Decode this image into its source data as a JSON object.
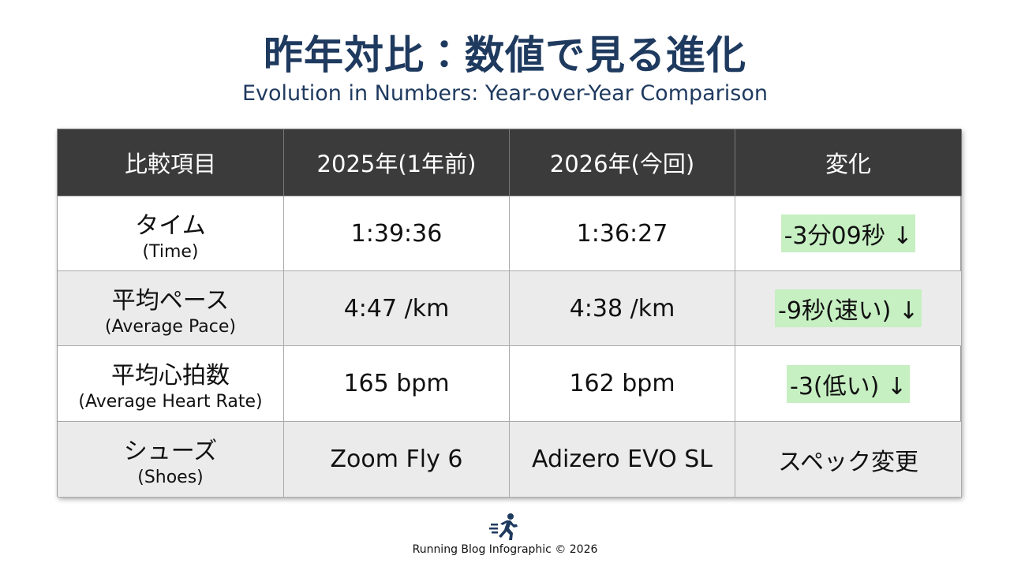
{
  "header": {
    "title": "昨年対比：数値で見る進化",
    "subtitle": "Evolution in Numbers: Year-over-Year Comparison"
  },
  "table": {
    "columns": [
      "比較項目",
      "2025年(1年前)",
      "2026年(今回)",
      "変化"
    ],
    "rows": [
      {
        "label": "タイム",
        "sublabel": "(Time)",
        "values": [
          "1:39:36",
          "1:36:27"
        ],
        "change": "-3分09秒 ↓",
        "highlight": true
      },
      {
        "label": "平均ペース",
        "sublabel": "(Average Pace)",
        "values": [
          "4:47 /km",
          "4:38 /km"
        ],
        "change": "-9秒(速い) ↓",
        "highlight": true
      },
      {
        "label": "平均心拍数",
        "sublabel": "(Average Heart Rate)",
        "values": [
          "165 bpm",
          "162 bpm"
        ],
        "change": "-3(低い) ↓",
        "highlight": true
      },
      {
        "label": "シューズ",
        "sublabel": "(Shoes)",
        "values": [
          "Zoom Fly 6",
          "Adizero EVO SL"
        ],
        "change": "スペック変更",
        "highlight": false
      }
    ]
  },
  "footer": {
    "text": "Running Blog Infographic © 2026"
  }
}
